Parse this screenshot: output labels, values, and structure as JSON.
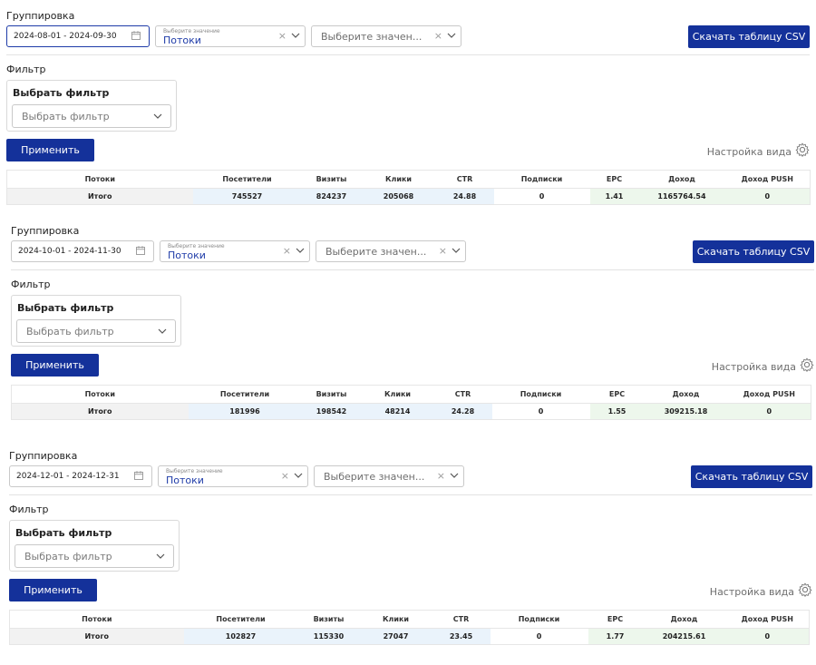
{
  "labels": {
    "grouping": "Группировка",
    "select_placeholder_small": "Выберите значение",
    "select_value": "Потоки",
    "second_select_placeholder": "Выберите значен...",
    "download_csv": "Скачать таблицу CSV",
    "filter": "Фильтр",
    "choose_filter": "Выбрать фильтр",
    "choose_filter_placeholder": "Выбрать фильтр",
    "apply": "Применить",
    "view_settings": "Настройка вида",
    "clear": "×"
  },
  "columns": [
    "Потоки",
    "Посетители",
    "Визиты",
    "Клики",
    "CTR",
    "Подписки",
    "EPC",
    "Доход",
    "Доход PUSH"
  ],
  "panels": [
    {
      "date_range": "2024-08-01 - 2024-09-30",
      "totals": [
        "Итого",
        "745527",
        "824237",
        "205068",
        "24.88",
        "0",
        "1.41",
        "1165764.54",
        "0"
      ]
    },
    {
      "date_range": "2024-10-01 - 2024-11-30",
      "totals": [
        "Итого",
        "181996",
        "198542",
        "48214",
        "24.28",
        "0",
        "1.55",
        "309215.18",
        "0"
      ]
    },
    {
      "date_range": "2024-12-01 - 2024-12-31",
      "totals": [
        "Итого",
        "102827",
        "115330",
        "27047",
        "23.45",
        "0",
        "1.77",
        "204215.61",
        "0"
      ]
    }
  ],
  "colors": {
    "primary": "#14319a",
    "row_grey": "#f2f2f2",
    "row_blue": "#eaf3fb",
    "row_green": "#edf7ec"
  }
}
